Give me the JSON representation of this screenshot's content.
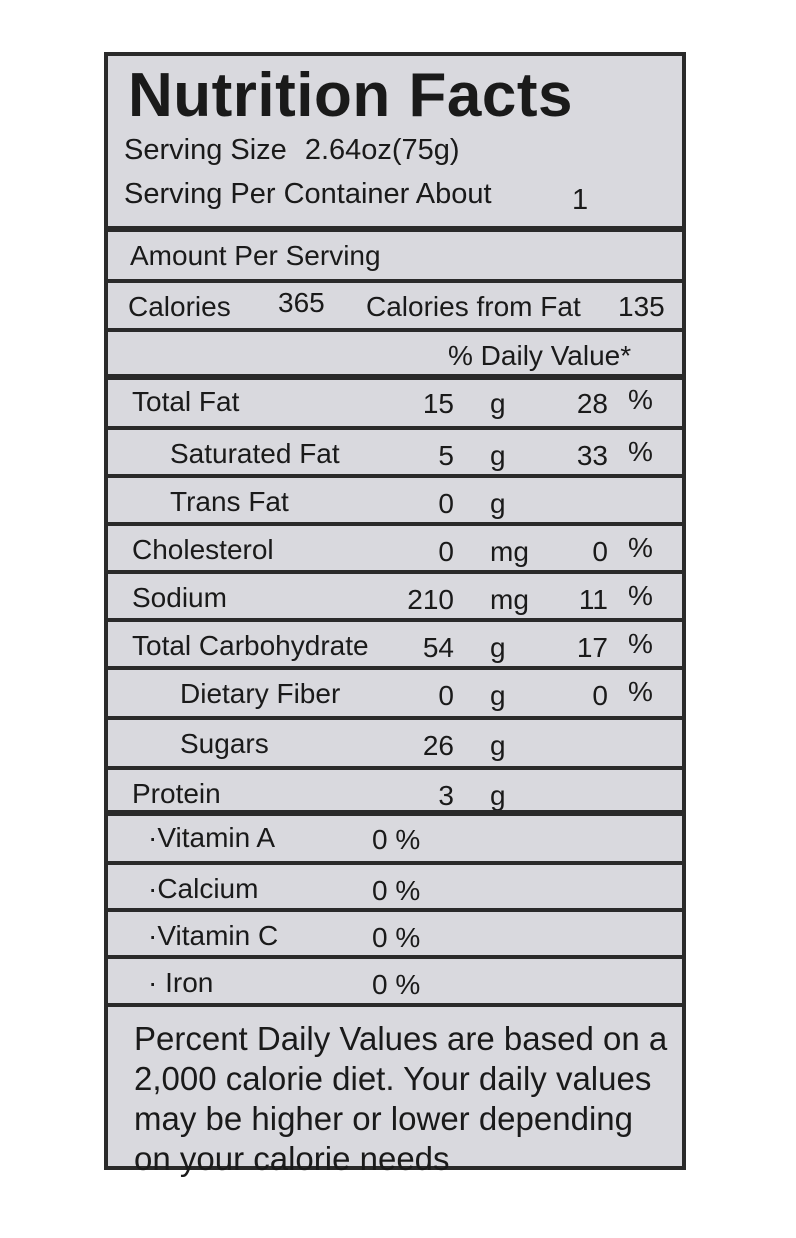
{
  "title": "Nutrition Facts",
  "serving_size_label": "Serving Size",
  "serving_size_value": "2.64oz(75g)",
  "servings_label": "Serving Per Container About",
  "servings_value": "1",
  "amount_per_serving": "Amount Per Serving",
  "calories_label": "Calories",
  "calories_value": "365",
  "calories_from_fat_label": "Calories from Fat",
  "calories_from_fat_value": "135",
  "daily_value_header": "% Daily Value*",
  "nutrients": [
    {
      "name": "Total  Fat",
      "amount": "15",
      "unit": "g",
      "dv": "28",
      "pct": "%"
    },
    {
      "name": "Saturated Fat",
      "amount": "5",
      "unit": "g",
      "dv": "33",
      "pct": "%"
    },
    {
      "name": "Trans Fat",
      "amount": "0",
      "unit": "g",
      "dv": "",
      "pct": ""
    },
    {
      "name": "Cholesterol",
      "amount": "0",
      "unit": "mg",
      "dv": "0",
      "pct": "%"
    },
    {
      "name": "Sodium",
      "amount": "210",
      "unit": "mg",
      "dv": "11",
      "pct": "%"
    },
    {
      "name": "Total Carbohydrate",
      "amount": "54",
      "unit": "g",
      "dv": "17",
      "pct": "%"
    },
    {
      "name": "Dietary Fiber",
      "amount": "0",
      "unit": "g",
      "dv": "0",
      "pct": "%"
    },
    {
      "name": "Sugars",
      "amount": "26",
      "unit": "g",
      "dv": "",
      "pct": ""
    },
    {
      "name": "Protein",
      "amount": "3",
      "unit": "g",
      "dv": "",
      "pct": ""
    }
  ],
  "vitamins": [
    {
      "name": "·Vitamin A",
      "value": "0 %"
    },
    {
      "name": "·Calcium",
      "value": "0 %"
    },
    {
      "name": "·Vitamin C",
      "value": "0 %"
    },
    {
      "name": "· Iron",
      "value": "0 %"
    }
  ],
  "footnote": "Percent Daily Values are based on a 2,000 calorie diet. Your daily values may be higher or lower depending on your calorie needs"
}
